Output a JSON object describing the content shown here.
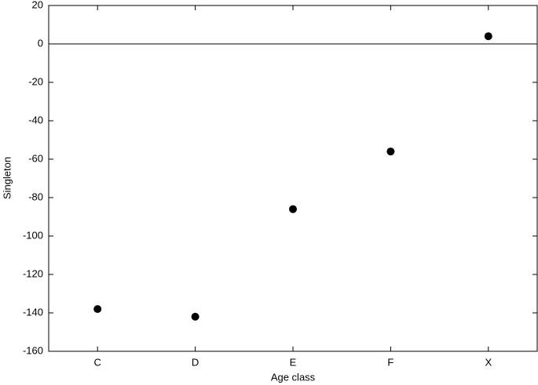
{
  "chart_data": {
    "type": "scatter",
    "x_label": "Age class",
    "y_label": "Singleton",
    "categories": [
      "C",
      "D",
      "E",
      "F",
      "X"
    ],
    "values": [
      -138,
      -142,
      -86,
      -56,
      4
    ],
    "color": "#000000",
    "ylim": [
      -160,
      20
    ],
    "yticks": [
      -160,
      -140,
      -120,
      -100,
      -80,
      -60,
      -40,
      -20,
      0,
      20
    ],
    "hline": 0
  }
}
